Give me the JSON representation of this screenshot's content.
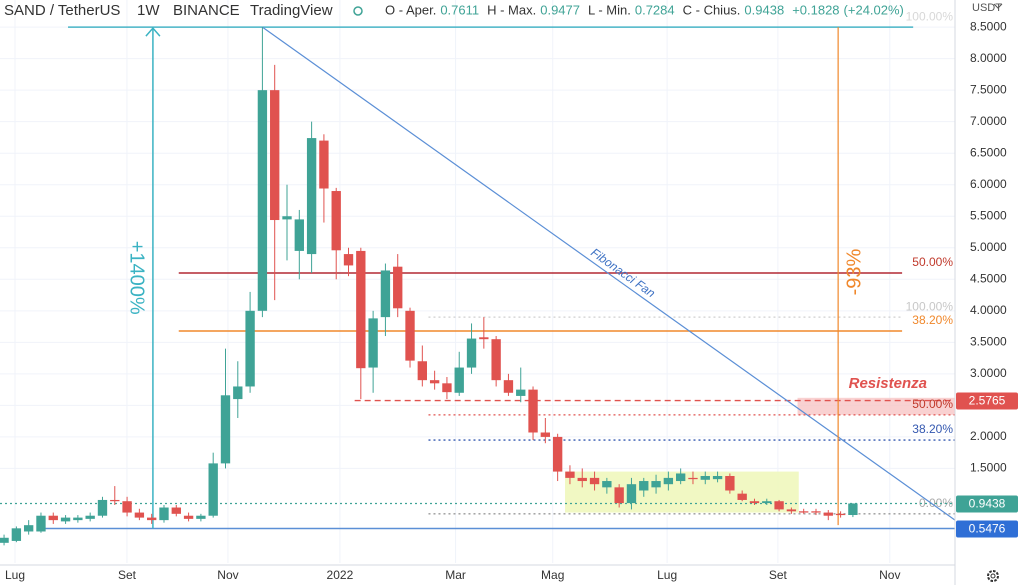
{
  "chart_data": {
    "type": "candlestick",
    "symbol": "SAND / TetherUS",
    "interval": "1W",
    "exchange": "BINANCE",
    "source": "TradingView",
    "legend_labels": {
      "open": "O - Aper.",
      "high": "H - Max.",
      "low": "L - Min.",
      "close": "C - Chius."
    },
    "change": {
      "value": 0.1828,
      "label": "+0.1828"
    },
    "change_pct": {
      "value": 24.02,
      "label": "(+24.02%)"
    },
    "currency": "USDT",
    "up_color": "#3fa396",
    "down_color": "#e0524f",
    "x": [
      0,
      1,
      2,
      3,
      4,
      5,
      6,
      7,
      8,
      9,
      10,
      11,
      12,
      13,
      14,
      15,
      16,
      17,
      18,
      19,
      20,
      21,
      22,
      23,
      24,
      25,
      26,
      27,
      28,
      29,
      30,
      31,
      32,
      33,
      34,
      35,
      36,
      37,
      38,
      39,
      40,
      41,
      42,
      43,
      44,
      45,
      46,
      47,
      48,
      49,
      50,
      51,
      52,
      53,
      54,
      55,
      56,
      57,
      58,
      59,
      60,
      61,
      62,
      63,
      64,
      65,
      66,
      67,
      68,
      69
    ],
    "open": [
      0.32,
      0.35,
      0.5,
      0.5,
      0.75,
      0.66,
      0.68,
      0.7,
      0.75,
      1.0,
      0.98,
      0.8,
      0.72,
      0.68,
      0.88,
      0.75,
      0.7,
      0.75,
      1.58,
      2.6,
      2.8,
      4.0,
      7.5,
      5.45,
      4.95,
      4.9,
      6.7,
      5.9,
      4.9,
      4.95,
      3.1,
      3.9,
      4.7,
      4.0,
      3.2,
      2.9,
      2.85,
      2.7,
      3.1,
      3.58,
      3.55,
      2.9,
      2.65,
      2.75,
      2.07,
      2.0,
      1.45,
      1.35,
      1.35,
      1.2,
      1.2,
      0.95,
      1.15,
      1.2,
      1.25,
      1.3,
      1.35,
      1.32,
      1.33,
      1.38,
      1.1,
      0.98,
      0.95,
      0.98,
      0.85,
      0.82,
      0.82,
      0.8,
      0.78,
      0.7611
    ],
    "high": [
      0.45,
      0.58,
      0.68,
      0.8,
      0.8,
      0.76,
      0.76,
      0.8,
      1.05,
      1.22,
      1.05,
      0.86,
      0.78,
      0.92,
      0.92,
      0.8,
      0.78,
      1.75,
      3.4,
      3.2,
      4.3,
      8.5,
      7.9,
      6.0,
      5.6,
      7.0,
      6.8,
      5.95,
      5.0,
      5.0,
      4.0,
      4.75,
      4.9,
      4.05,
      3.45,
      3.05,
      2.95,
      3.35,
      3.8,
      3.9,
      3.6,
      3.0,
      3.1,
      2.8,
      2.3,
      2.05,
      1.55,
      1.5,
      1.45,
      1.35,
      1.25,
      1.35,
      1.35,
      1.4,
      1.45,
      1.5,
      1.45,
      1.45,
      1.45,
      1.42,
      1.15,
      1.02,
      1.02,
      1.0,
      0.88,
      0.86,
      0.86,
      0.84,
      0.82,
      0.9477
    ],
    "low": [
      0.28,
      0.33,
      0.45,
      0.48,
      0.62,
      0.62,
      0.64,
      0.66,
      0.72,
      0.92,
      0.74,
      0.68,
      0.62,
      0.64,
      0.74,
      0.66,
      0.66,
      0.72,
      1.5,
      2.3,
      2.7,
      3.9,
      4.17,
      4.8,
      4.5,
      4.6,
      5.4,
      4.5,
      4.55,
      2.6,
      2.7,
      3.6,
      3.9,
      3.1,
      2.8,
      2.75,
      2.6,
      2.65,
      3.0,
      3.4,
      2.8,
      2.65,
      2.55,
      1.95,
      1.9,
      1.3,
      1.25,
      1.2,
      1.15,
      1.1,
      0.88,
      0.85,
      1.05,
      1.1,
      1.15,
      1.25,
      1.25,
      1.25,
      1.28,
      1.1,
      0.98,
      0.92,
      0.92,
      0.82,
      0.78,
      0.78,
      0.76,
      0.68,
      0.72,
      0.7284
    ],
    "close": [
      0.4,
      0.55,
      0.6,
      0.75,
      0.68,
      0.72,
      0.72,
      0.75,
      1.0,
      0.98,
      0.8,
      0.72,
      0.68,
      0.88,
      0.78,
      0.7,
      0.75,
      1.58,
      2.66,
      2.8,
      4.0,
      7.5,
      5.44,
      5.5,
      5.45,
      6.74,
      5.94,
      4.96,
      4.72,
      3.09,
      3.88,
      4.64,
      4.04,
      3.21,
      2.9,
      2.85,
      2.71,
      3.1,
      3.56,
      3.55,
      2.9,
      2.7,
      2.75,
      2.07,
      2.0,
      1.45,
      1.35,
      1.3,
      1.25,
      1.3,
      0.95,
      1.25,
      1.3,
      1.3,
      1.35,
      1.42,
      1.33,
      1.38,
      1.38,
      1.15,
      1.0,
      0.95,
      0.98,
      0.85,
      0.82,
      0.8,
      0.8,
      0.75,
      0.76,
      0.9438
    ],
    "xlim": [
      -0.33,
      77.3
    ],
    "xticks": [
      {
        "value": 0.89,
        "label": "Lug"
      },
      {
        "value": 9.99,
        "label": "Set"
      },
      {
        "value": 18.2,
        "label": "Nov"
      },
      {
        "value": 27.3,
        "label": "2022"
      },
      {
        "value": 36.7,
        "label": "Mar"
      },
      {
        "value": 44.6,
        "label": "Mag"
      },
      {
        "value": 53.9,
        "label": "Lug"
      },
      {
        "value": 62.9,
        "label": "Set"
      },
      {
        "value": 72.0,
        "label": "Nov"
      }
    ],
    "ylim": [
      0,
      8.93
    ],
    "yticks": [
      {
        "value": 1.5,
        "label": "1.5000"
      },
      {
        "value": 2,
        "label": "2.0000"
      },
      {
        "value": 2.5,
        "label": "2.5000"
      },
      {
        "value": 3,
        "label": "3.0000"
      },
      {
        "value": 3.5,
        "label": "3.5000"
      },
      {
        "value": 4,
        "label": "4.0000"
      },
      {
        "value": 4.5,
        "label": "4.5000"
      },
      {
        "value": 5,
        "label": "5.0000"
      },
      {
        "value": 5.5,
        "label": "5.5000"
      },
      {
        "value": 6,
        "label": "6.0000"
      },
      {
        "value": 6.5,
        "label": "6.5000"
      },
      {
        "value": 7,
        "label": "7.0000"
      },
      {
        "value": 7.5,
        "label": "7.5000"
      },
      {
        "value": 8,
        "label": "8.0000"
      },
      {
        "value": 8.5,
        "label": "8.5000"
      }
    ],
    "grid": true,
    "levels": [
      {
        "price": 8.5,
        "from": 5.2,
        "to": 73.9,
        "color": "#47b4c6",
        "style": "solid",
        "label": "100.00%",
        "label_color": "#d8d8d8"
      },
      {
        "price": 4.6,
        "from": 14.2,
        "to": 73.0,
        "color": "#b22833",
        "style": "solid",
        "label": "50.00%",
        "label_color": "#c0392b"
      },
      {
        "price": 3.9,
        "from": 34.5,
        "to": 73.0,
        "color": "#cfcfcf",
        "style": "dotted",
        "label": "100.00%",
        "label_color": "#c8c8c8"
      },
      {
        "price": 3.68,
        "from": 14.2,
        "to": 73.0,
        "color": "#f0882c",
        "style": "solid",
        "label": "38.20%",
        "label_color": "#f0882c"
      },
      {
        "price": 2.5765,
        "from": 28.5,
        "to": 77.3,
        "color": "#e0524f",
        "style": "dashed"
      },
      {
        "price": 2.35,
        "from": 34.5,
        "to": 77.3,
        "color": "#e0524f",
        "style": "dotted",
        "label": "50.00%",
        "label_color": "#c0392b"
      },
      {
        "price": 1.95,
        "from": 34.5,
        "to": 77.3,
        "color": "#3458b0",
        "style": "dotted",
        "label": "38.20%",
        "label_color": "#3458b0"
      },
      {
        "price": 0.78,
        "from": 34.5,
        "to": 77.3,
        "color": "#999999",
        "style": "dotted",
        "label": "0.00%",
        "label_color": "#aaaaaa"
      },
      {
        "price": 0.5476,
        "from": 3.3,
        "to": 77.3,
        "color": "#5b8fd6",
        "style": "solid"
      },
      {
        "price": 0.9438,
        "from": -0.33,
        "to": 77.3,
        "color": "#3fa396",
        "style": "dotted"
      }
    ],
    "price_tags": [
      {
        "value": 2.5765,
        "color": "#e0524f"
      },
      {
        "value": 0.9438,
        "color": "#3fa396"
      },
      {
        "value": 0.5476,
        "color": "#2f6fd6"
      }
    ],
    "resistance_zone": {
      "from": 64.5,
      "to": 77.3,
      "top": 2.62,
      "bottom": 2.35,
      "label": "Resistenza"
    },
    "range_box": {
      "from": 45.6,
      "to": 64.6,
      "top": 1.45,
      "bottom": 0.8
    },
    "fan": {
      "from": [
        21,
        8.5
      ],
      "to": [
        77.3,
        0.68
      ],
      "label": "Fibonacci Fan"
    },
    "rise_arrow": {
      "x": 12.1,
      "from": 0.55,
      "to": 8.5,
      "label": "+1400%"
    },
    "fall_line": {
      "x": 67.8,
      "from": 8.5,
      "to": 0.6,
      "label": "-93%"
    }
  }
}
